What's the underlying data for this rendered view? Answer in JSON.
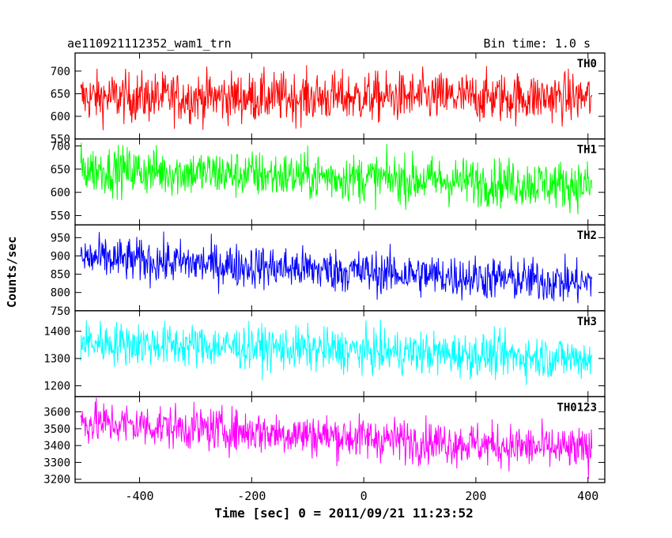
{
  "header": {
    "title_left": "ae110921112352_wam1_trn",
    "title_right": "Bin time: 1.0 s"
  },
  "chart_data": {
    "type": "line",
    "xlabel": "Time [sec] 0 = 2011/09/21 11:23:52",
    "ylabel": "Counts/sec",
    "xlim": [
      -515,
      430
    ],
    "x_ticks": [
      -400,
      -200,
      0,
      200,
      400
    ],
    "x_range_data": [
      -505,
      407
    ],
    "bin_time_s": 1.0,
    "panels": [
      {
        "name": "TH0",
        "color": "#ff0000",
        "ylim": [
          550,
          740
        ],
        "yticks": [
          550,
          600,
          650,
          700
        ],
        "trend": [
          [
            -505,
            642
          ],
          [
            407,
            642
          ]
        ],
        "noise_sd": 28
      },
      {
        "name": "TH1",
        "color": "#00ff00",
        "ylim": [
          530,
          715
        ],
        "yticks": [
          550,
          600,
          650,
          700
        ],
        "trend": [
          [
            -505,
            650
          ],
          [
            407,
            615
          ]
        ],
        "noise_sd": 26
      },
      {
        "name": "TH2",
        "color": "#0000ff",
        "ylim": [
          750,
          985
        ],
        "yticks": [
          750,
          800,
          850,
          900,
          950
        ],
        "trend": [
          [
            -505,
            895
          ],
          [
            407,
            825
          ]
        ],
        "noise_sd": 30
      },
      {
        "name": "TH3",
        "color": "#00ffff",
        "ylim": [
          1160,
          1475
        ],
        "yticks": [
          1200,
          1300,
          1400
        ],
        "trend": [
          [
            -505,
            1360
          ],
          [
            407,
            1300
          ]
        ],
        "noise_sd": 40
      },
      {
        "name": "TH0123",
        "color": "#ff00ff",
        "ylim": [
          3180,
          3690
        ],
        "yticks": [
          3200,
          3300,
          3400,
          3500,
          3600
        ],
        "trend": [
          [
            -505,
            3540
          ],
          [
            407,
            3370
          ]
        ],
        "noise_sd": 65
      }
    ]
  }
}
